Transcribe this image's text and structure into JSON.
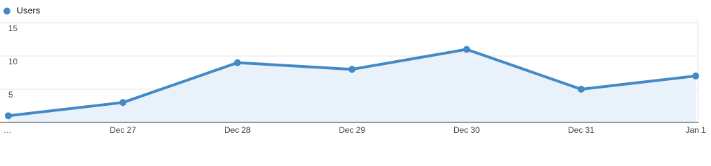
{
  "chart_data": {
    "type": "line",
    "categories": [
      "…",
      "Dec 27",
      "Dec 28",
      "Dec 29",
      "Dec 30",
      "Dec 31",
      "Jan 1"
    ],
    "series": [
      {
        "name": "Users",
        "color": "#4289c6",
        "values": [
          1,
          3,
          9,
          8,
          11,
          5,
          7
        ]
      }
    ],
    "ylim": [
      0,
      15
    ],
    "yticks": [
      5,
      10,
      15
    ],
    "grid": true,
    "area_fill": "#e9f1fa",
    "legend": "top-left"
  }
}
